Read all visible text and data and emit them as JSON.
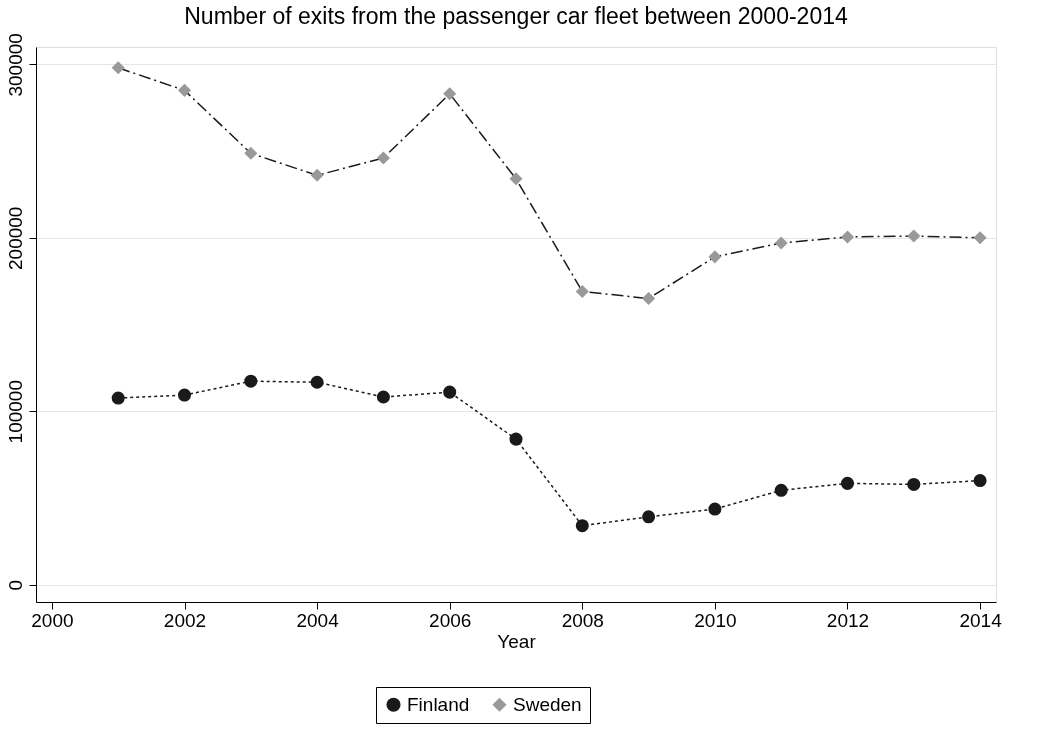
{
  "chart_data": {
    "type": "line",
    "title": "Number of exits from the passenger car fleet between 2000-2014",
    "xlabel": "Year",
    "x": [
      2001,
      2002,
      2003,
      2004,
      2005,
      2006,
      2007,
      2008,
      2009,
      2010,
      2011,
      2012,
      2013,
      2014
    ],
    "series": [
      {
        "name": "Finland",
        "color": "#1a1a1a",
        "marker": "circle",
        "line_style": "dotted",
        "values": [
          107600,
          109300,
          117300,
          116700,
          108200,
          111000,
          83900,
          34000,
          39100,
          43600,
          54400,
          58400,
          57800,
          60000
        ]
      },
      {
        "name": "Sweden",
        "color": "#999999",
        "marker": "diamond",
        "line_style": "dashed",
        "values": [
          298000,
          285000,
          248700,
          236000,
          246000,
          283000,
          234000,
          169000,
          165000,
          189000,
          197000,
          200500,
          201000,
          200000
        ]
      }
    ],
    "xlim": [
      1999.76,
      2014.24
    ],
    "xticks": [
      2000,
      2002,
      2004,
      2006,
      2008,
      2010,
      2012,
      2014
    ],
    "ylim": [
      -10000,
      310000
    ],
    "yticks": [
      0,
      100000,
      200000,
      300000
    ],
    "grid": "y",
    "legend": "bottom"
  }
}
